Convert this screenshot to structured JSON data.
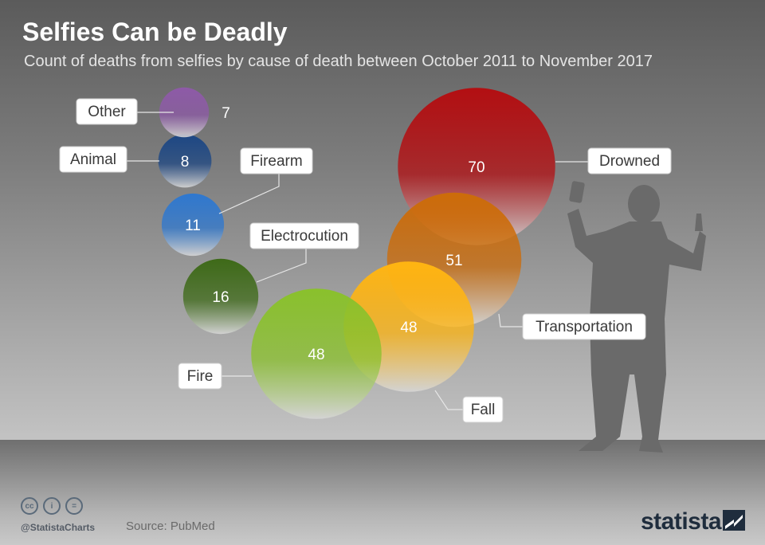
{
  "title": "Selfies Can be Deadly",
  "subtitle": "Count of deaths from selfies by cause of death between October 2011 to November 2017",
  "chart_data": {
    "type": "bubble",
    "title": "Selfies Can be Deadly",
    "subtitle": "Count of deaths from selfies by cause of death between October 2011 to November 2017",
    "categories": [
      "Other",
      "Animal",
      "Firearm",
      "Electrocution",
      "Fire",
      "Fall",
      "Transportation",
      "Drowned"
    ],
    "values": [
      7,
      8,
      11,
      16,
      48,
      48,
      51,
      70
    ],
    "colors": [
      "#8e5aa8",
      "#1d4784",
      "#2f78cf",
      "#3e6a18",
      "#8ac12c",
      "#ffb512",
      "#cc6c0a",
      "#b30f12"
    ]
  },
  "footer": {
    "cc_icons": [
      "cc-icon",
      "by-icon",
      "nd-icon"
    ],
    "handle": "@StatistaCharts",
    "source": "Source: PubMed",
    "brand": "statista"
  }
}
